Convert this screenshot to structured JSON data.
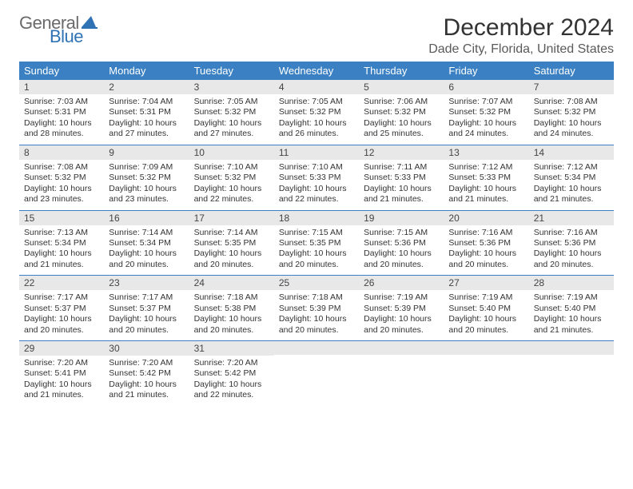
{
  "logo": {
    "text_general": "General",
    "text_blue": "Blue",
    "shape_color": "#2f73b5"
  },
  "title": "December 2024",
  "location": "Dade City, Florida, United States",
  "colors": {
    "header_bg": "#3a80c2",
    "header_text": "#ffffff",
    "daynum_bg": "#e8e8e8",
    "week_border": "#3a80c2",
    "body_text": "#333333",
    "logo_gray": "#6a6a6a",
    "logo_blue": "#2f73b5"
  },
  "day_headers": [
    "Sunday",
    "Monday",
    "Tuesday",
    "Wednesday",
    "Thursday",
    "Friday",
    "Saturday"
  ],
  "weeks": [
    [
      {
        "num": "1",
        "sunrise": "Sunrise: 7:03 AM",
        "sunset": "Sunset: 5:31 PM",
        "daylight": "Daylight: 10 hours and 28 minutes."
      },
      {
        "num": "2",
        "sunrise": "Sunrise: 7:04 AM",
        "sunset": "Sunset: 5:31 PM",
        "daylight": "Daylight: 10 hours and 27 minutes."
      },
      {
        "num": "3",
        "sunrise": "Sunrise: 7:05 AM",
        "sunset": "Sunset: 5:32 PM",
        "daylight": "Daylight: 10 hours and 27 minutes."
      },
      {
        "num": "4",
        "sunrise": "Sunrise: 7:05 AM",
        "sunset": "Sunset: 5:32 PM",
        "daylight": "Daylight: 10 hours and 26 minutes."
      },
      {
        "num": "5",
        "sunrise": "Sunrise: 7:06 AM",
        "sunset": "Sunset: 5:32 PM",
        "daylight": "Daylight: 10 hours and 25 minutes."
      },
      {
        "num": "6",
        "sunrise": "Sunrise: 7:07 AM",
        "sunset": "Sunset: 5:32 PM",
        "daylight": "Daylight: 10 hours and 24 minutes."
      },
      {
        "num": "7",
        "sunrise": "Sunrise: 7:08 AM",
        "sunset": "Sunset: 5:32 PM",
        "daylight": "Daylight: 10 hours and 24 minutes."
      }
    ],
    [
      {
        "num": "8",
        "sunrise": "Sunrise: 7:08 AM",
        "sunset": "Sunset: 5:32 PM",
        "daylight": "Daylight: 10 hours and 23 minutes."
      },
      {
        "num": "9",
        "sunrise": "Sunrise: 7:09 AM",
        "sunset": "Sunset: 5:32 PM",
        "daylight": "Daylight: 10 hours and 23 minutes."
      },
      {
        "num": "10",
        "sunrise": "Sunrise: 7:10 AM",
        "sunset": "Sunset: 5:32 PM",
        "daylight": "Daylight: 10 hours and 22 minutes."
      },
      {
        "num": "11",
        "sunrise": "Sunrise: 7:10 AM",
        "sunset": "Sunset: 5:33 PM",
        "daylight": "Daylight: 10 hours and 22 minutes."
      },
      {
        "num": "12",
        "sunrise": "Sunrise: 7:11 AM",
        "sunset": "Sunset: 5:33 PM",
        "daylight": "Daylight: 10 hours and 21 minutes."
      },
      {
        "num": "13",
        "sunrise": "Sunrise: 7:12 AM",
        "sunset": "Sunset: 5:33 PM",
        "daylight": "Daylight: 10 hours and 21 minutes."
      },
      {
        "num": "14",
        "sunrise": "Sunrise: 7:12 AM",
        "sunset": "Sunset: 5:34 PM",
        "daylight": "Daylight: 10 hours and 21 minutes."
      }
    ],
    [
      {
        "num": "15",
        "sunrise": "Sunrise: 7:13 AM",
        "sunset": "Sunset: 5:34 PM",
        "daylight": "Daylight: 10 hours and 21 minutes."
      },
      {
        "num": "16",
        "sunrise": "Sunrise: 7:14 AM",
        "sunset": "Sunset: 5:34 PM",
        "daylight": "Daylight: 10 hours and 20 minutes."
      },
      {
        "num": "17",
        "sunrise": "Sunrise: 7:14 AM",
        "sunset": "Sunset: 5:35 PM",
        "daylight": "Daylight: 10 hours and 20 minutes."
      },
      {
        "num": "18",
        "sunrise": "Sunrise: 7:15 AM",
        "sunset": "Sunset: 5:35 PM",
        "daylight": "Daylight: 10 hours and 20 minutes."
      },
      {
        "num": "19",
        "sunrise": "Sunrise: 7:15 AM",
        "sunset": "Sunset: 5:36 PM",
        "daylight": "Daylight: 10 hours and 20 minutes."
      },
      {
        "num": "20",
        "sunrise": "Sunrise: 7:16 AM",
        "sunset": "Sunset: 5:36 PM",
        "daylight": "Daylight: 10 hours and 20 minutes."
      },
      {
        "num": "21",
        "sunrise": "Sunrise: 7:16 AM",
        "sunset": "Sunset: 5:36 PM",
        "daylight": "Daylight: 10 hours and 20 minutes."
      }
    ],
    [
      {
        "num": "22",
        "sunrise": "Sunrise: 7:17 AM",
        "sunset": "Sunset: 5:37 PM",
        "daylight": "Daylight: 10 hours and 20 minutes."
      },
      {
        "num": "23",
        "sunrise": "Sunrise: 7:17 AM",
        "sunset": "Sunset: 5:37 PM",
        "daylight": "Daylight: 10 hours and 20 minutes."
      },
      {
        "num": "24",
        "sunrise": "Sunrise: 7:18 AM",
        "sunset": "Sunset: 5:38 PM",
        "daylight": "Daylight: 10 hours and 20 minutes."
      },
      {
        "num": "25",
        "sunrise": "Sunrise: 7:18 AM",
        "sunset": "Sunset: 5:39 PM",
        "daylight": "Daylight: 10 hours and 20 minutes."
      },
      {
        "num": "26",
        "sunrise": "Sunrise: 7:19 AM",
        "sunset": "Sunset: 5:39 PM",
        "daylight": "Daylight: 10 hours and 20 minutes."
      },
      {
        "num": "27",
        "sunrise": "Sunrise: 7:19 AM",
        "sunset": "Sunset: 5:40 PM",
        "daylight": "Daylight: 10 hours and 20 minutes."
      },
      {
        "num": "28",
        "sunrise": "Sunrise: 7:19 AM",
        "sunset": "Sunset: 5:40 PM",
        "daylight": "Daylight: 10 hours and 21 minutes."
      }
    ],
    [
      {
        "num": "29",
        "sunrise": "Sunrise: 7:20 AM",
        "sunset": "Sunset: 5:41 PM",
        "daylight": "Daylight: 10 hours and 21 minutes."
      },
      {
        "num": "30",
        "sunrise": "Sunrise: 7:20 AM",
        "sunset": "Sunset: 5:42 PM",
        "daylight": "Daylight: 10 hours and 21 minutes."
      },
      {
        "num": "31",
        "sunrise": "Sunrise: 7:20 AM",
        "sunset": "Sunset: 5:42 PM",
        "daylight": "Daylight: 10 hours and 22 minutes."
      },
      {
        "blank": true
      },
      {
        "blank": true
      },
      {
        "blank": true
      },
      {
        "blank": true
      }
    ]
  ]
}
